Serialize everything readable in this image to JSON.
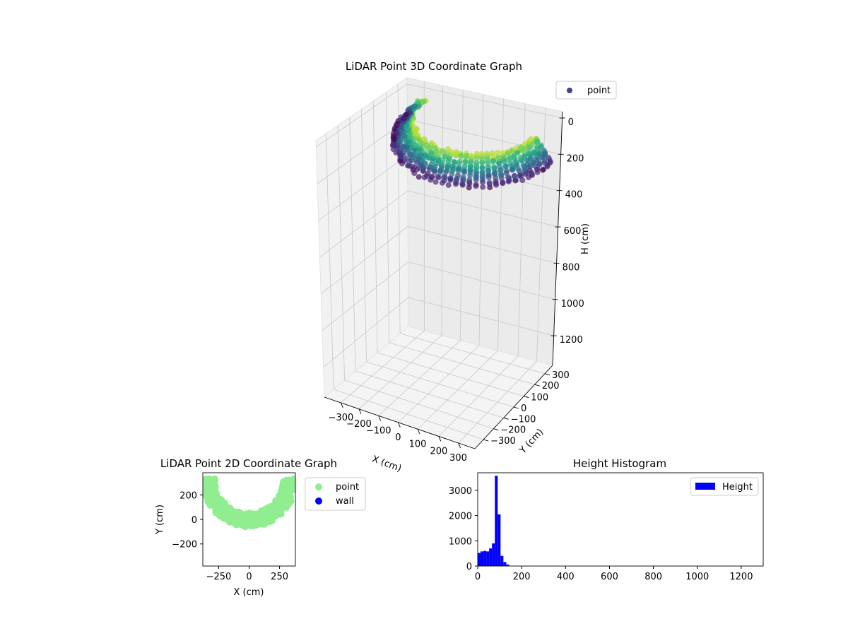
{
  "figure": {
    "background": "#ffffff"
  },
  "chart_data": [
    {
      "type": "scatter",
      "subtype": "3d",
      "title": "LiDAR Point 3D Coordinate Graph",
      "xlabel": "X (cm)",
      "ylabel": "Y (cm)",
      "zlabel": "H (cm)",
      "xticks": [
        "−300",
        "−200",
        "−100",
        "0",
        "100",
        "200",
        "300"
      ],
      "yticks": [
        "−300",
        "−200",
        "−100",
        "0",
        "100",
        "200",
        "300"
      ],
      "zticks": [
        "0",
        "200",
        "400",
        "600",
        "800",
        "1000",
        "1200"
      ],
      "xlim": [
        -370,
        370
      ],
      "ylim": [
        -370,
        370
      ],
      "zlim": [
        0,
        1300
      ],
      "zaxis_inverted": true,
      "legend": {
        "position": "top-right",
        "entries": [
          {
            "name": "point",
            "color": "#414487"
          }
        ]
      },
      "colormap": "viridis",
      "grid": true,
      "description_points": "arc-shaped point cloud near the top of the H axis (heights ~0-150 cm), U-shaped in X-Y"
    },
    {
      "type": "scatter",
      "title": "LiDAR Point 2D Coordinate Graph",
      "xlabel": "X (cm)",
      "ylabel": "Y (cm)",
      "xticks": [
        "−250",
        "0",
        "250"
      ],
      "yticks": [
        "−200",
        "0",
        "200"
      ],
      "xlim": [
        -380,
        380
      ],
      "ylim": [
        -380,
        380
      ],
      "legend": {
        "position": "outside-right",
        "entries": [
          {
            "name": "point",
            "color": "#90ee90"
          },
          {
            "name": "wall",
            "color": "#0000ff"
          }
        ]
      },
      "series": [
        {
          "name": "point",
          "color": "#90ee90",
          "shape": "U-shaped arc from about (-330, 330) down to (0, -60) and up to (320, 330)"
        },
        {
          "name": "wall",
          "color": "#0000ff",
          "points": []
        }
      ]
    },
    {
      "type": "bar",
      "subtype": "histogram",
      "title": "Height Histogram",
      "xlabel": "",
      "ylabel": "",
      "xlim": [
        0,
        1300
      ],
      "ylim": [
        0,
        3700
      ],
      "xticks": [
        "0",
        "200",
        "400",
        "600",
        "800",
        "1000",
        "1200"
      ],
      "yticks": [
        "0",
        "1000",
        "2000",
        "3000"
      ],
      "legend": {
        "position": "top-right",
        "entries": [
          {
            "name": "Height",
            "color": "#0000ff"
          }
        ]
      },
      "bin_width": 13,
      "series": [
        {
          "name": "Height",
          "color": "#0000ff",
          "bin_edges": [
            0,
            13,
            26,
            39,
            52,
            65,
            78,
            91,
            104,
            117,
            130,
            143
          ],
          "values": [
            520,
            580,
            600,
            580,
            700,
            900,
            3580,
            2050,
            400,
            160,
            60
          ]
        }
      ]
    }
  ]
}
